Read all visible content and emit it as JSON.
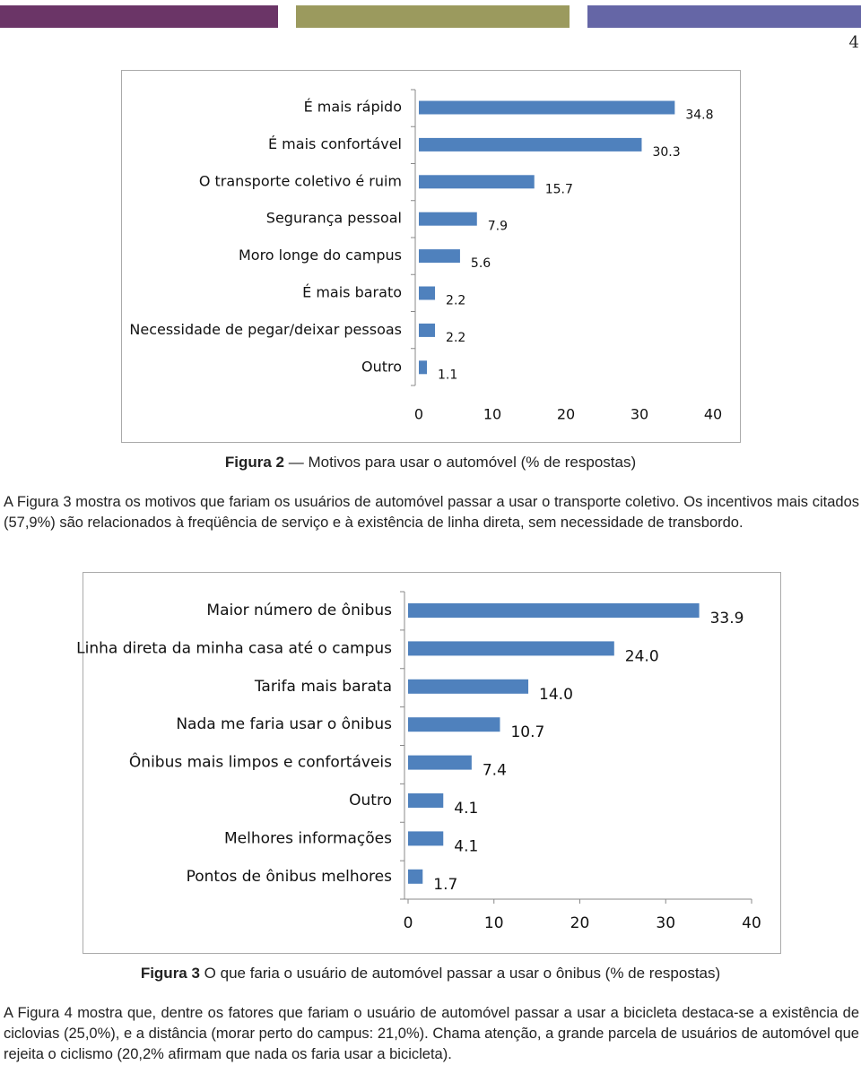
{
  "header": {
    "page_number": "4"
  },
  "chart_data": [
    {
      "type": "bar",
      "orientation": "horizontal",
      "color": "#4f81bd",
      "categories": [
        "É mais rápido",
        "É mais confortável",
        "O transporte coletivo é ruim",
        "Segurança pessoal",
        "Moro longe do campus",
        "É mais barato",
        "Necessidade de pegar/deixar pessoas",
        "Outro"
      ],
      "values": [
        34.8,
        30.3,
        15.7,
        7.9,
        5.6,
        2.2,
        2.2,
        1.1
      ],
      "xlim": [
        0,
        40
      ],
      "xticks": [
        0,
        10,
        20,
        30,
        40
      ]
    },
    {
      "type": "bar",
      "orientation": "horizontal",
      "color": "#4f81bd",
      "categories": [
        "Maior número de ônibus",
        "Linha direta da minha casa até o campus",
        "Tarifa mais barata",
        "Nada me faria usar o ônibus",
        "Ônibus mais limpos e confortáveis",
        "Outro",
        "Melhores informações",
        "Pontos de ônibus melhores"
      ],
      "values": [
        33.9,
        24.0,
        14.0,
        10.7,
        7.4,
        4.1,
        4.1,
        1.7
      ],
      "value_labels": [
        "33.9",
        "24.0",
        "14.0",
        "10.7",
        "7.4",
        "4.1",
        "4.1",
        "1.7"
      ],
      "xlim": [
        0,
        40
      ],
      "xticks": [
        0,
        10,
        20,
        30,
        40
      ]
    }
  ],
  "captions": [
    {
      "label": "Figura 2",
      "text": "— Motivos para usar o automóvel (% de respostas)"
    },
    {
      "label": "Figura 3",
      "text": "O que faria o usuário de automóvel passar a usar o ônibus (% de respostas)"
    }
  ],
  "paragraphs": [
    "A Figura 3 mostra os motivos que fariam os usuários de automóvel passar a usar o transporte coletivo. Os incentivos mais citados (57,9%) são relacionados à freqüência de serviço e à existência de linha direta, sem necessidade de transbordo.",
    "A Figura 4 mostra que, dentre os fatores que fariam o usuário de automóvel passar a usar a bicicleta destaca-se a existência de ciclovias (25,0%), e a distância (morar perto do campus: 21,0%). Chama atenção, a grande parcela de usuários de automóvel que rejeita o ciclismo (20,2% afirmam que nada os faria usar a bicicleta)."
  ]
}
